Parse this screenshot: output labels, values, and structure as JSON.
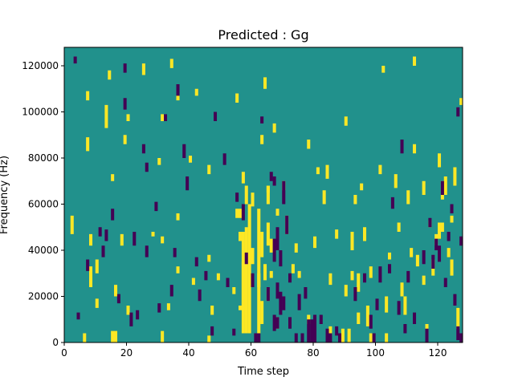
{
  "chart_data": {
    "type": "heatmap",
    "title": "Predicted : Gg",
    "xlabel": "Time step",
    "ylabel": "Frequency (Hz)",
    "xlim": [
      0,
      128
    ],
    "ylim": [
      0,
      128000
    ],
    "x_ticks": [
      0,
      20,
      40,
      60,
      80,
      100,
      120
    ],
    "y_ticks": [
      0,
      20000,
      40000,
      60000,
      80000,
      100000,
      120000
    ],
    "x_tick_labels": [
      "0",
      "20",
      "40",
      "60",
      "80",
      "100",
      "120"
    ],
    "y_tick_labels": [
      "0",
      "20000",
      "40000",
      "60000",
      "80000",
      "100000",
      "120000"
    ],
    "n_time_steps": 128,
    "n_frequency_bins": 128,
    "bin_height_hz": 1000,
    "levels": {
      "background": {
        "value": 0,
        "color": "#21918c"
      },
      "positive": {
        "value": 1,
        "color": "#fde725"
      },
      "negative": {
        "value": -1,
        "color": "#440154"
      }
    },
    "positive_cells": [
      [
        2,
        47,
        55
      ],
      [
        6,
        0,
        4
      ],
      [
        7,
        83,
        89
      ],
      [
        7,
        105,
        109
      ],
      [
        8,
        24,
        33
      ],
      [
        8,
        42,
        47
      ],
      [
        10,
        15,
        19
      ],
      [
        10,
        30,
        36
      ],
      [
        13,
        93,
        103
      ],
      [
        14,
        114,
        118
      ],
      [
        15,
        0,
        5
      ],
      [
        15,
        70,
        73
      ],
      [
        16,
        0,
        5
      ],
      [
        16,
        20,
        25
      ],
      [
        18,
        42,
        47
      ],
      [
        19,
        86,
        90
      ],
      [
        20,
        12,
        16
      ],
      [
        20,
        96,
        99
      ],
      [
        25,
        116,
        121
      ],
      [
        28,
        46,
        48
      ],
      [
        30,
        77,
        80
      ],
      [
        31,
        0,
        5
      ],
      [
        31,
        96,
        99
      ],
      [
        31,
        43,
        46
      ],
      [
        33,
        14,
        17
      ],
      [
        34,
        119,
        123
      ],
      [
        36,
        53,
        56
      ],
      [
        36,
        105,
        108
      ],
      [
        36,
        30,
        33
      ],
      [
        40,
        78,
        81
      ],
      [
        41,
        25,
        28
      ],
      [
        42,
        107,
        110
      ],
      [
        46,
        0,
        3
      ],
      [
        46,
        73,
        77
      ],
      [
        46,
        35,
        38
      ],
      [
        47,
        12,
        16
      ],
      [
        49,
        27,
        30
      ],
      [
        54,
        21,
        24
      ],
      [
        55,
        104,
        108
      ],
      [
        55,
        54,
        58
      ],
      [
        56,
        54,
        58
      ],
      [
        56,
        44,
        48
      ],
      [
        56,
        14,
        16
      ],
      [
        57,
        69,
        74
      ],
      [
        57,
        4,
        35
      ],
      [
        57,
        14,
        48
      ],
      [
        58,
        4,
        50
      ],
      [
        58,
        60,
        68
      ],
      [
        59,
        4,
        60
      ],
      [
        60,
        34,
        41
      ],
      [
        60,
        59,
        65
      ],
      [
        62,
        4,
        58
      ],
      [
        62,
        24,
        30
      ],
      [
        63,
        8,
        18
      ],
      [
        63,
        37,
        48
      ],
      [
        63,
        86,
        90
      ],
      [
        64,
        27,
        33
      ],
      [
        64,
        110,
        115
      ],
      [
        64,
        30,
        34
      ],
      [
        65,
        65,
        68
      ],
      [
        65,
        60,
        68
      ],
      [
        65,
        18,
        24
      ],
      [
        65,
        42,
        52
      ],
      [
        66,
        28,
        31
      ],
      [
        66,
        39,
        45
      ],
      [
        67,
        91,
        95
      ],
      [
        68,
        6,
        11
      ],
      [
        68,
        20,
        24
      ],
      [
        68,
        55,
        58
      ],
      [
        70,
        66,
        70
      ],
      [
        71,
        47,
        55
      ],
      [
        73,
        30,
        34
      ],
      [
        74,
        39,
        43
      ],
      [
        75,
        28,
        31
      ],
      [
        78,
        84,
        88
      ],
      [
        78,
        8,
        12
      ],
      [
        80,
        41,
        46
      ],
      [
        81,
        73,
        76
      ],
      [
        83,
        60,
        66
      ],
      [
        84,
        71,
        77
      ],
      [
        85,
        3,
        7
      ],
      [
        85,
        25,
        30
      ],
      [
        87,
        45,
        49
      ],
      [
        88,
        0,
        4
      ],
      [
        89,
        0,
        6
      ],
      [
        90,
        20,
        25
      ],
      [
        90,
        94,
        98
      ],
      [
        91,
        0,
        6
      ],
      [
        92,
        40,
        48
      ],
      [
        92,
        27,
        31
      ],
      [
        93,
        60,
        64
      ],
      [
        94,
        8,
        13
      ],
      [
        94,
        22,
        30
      ],
      [
        95,
        66,
        69
      ],
      [
        96,
        44,
        50
      ],
      [
        97,
        7,
        16
      ],
      [
        98,
        0,
        4
      ],
      [
        98,
        28,
        33
      ],
      [
        101,
        73,
        77
      ],
      [
        102,
        117,
        120
      ],
      [
        103,
        0,
        4
      ],
      [
        103,
        13,
        20
      ],
      [
        104,
        36,
        39
      ],
      [
        106,
        67,
        73
      ],
      [
        107,
        48,
        52
      ],
      [
        108,
        20,
        26
      ],
      [
        109,
        12,
        20
      ],
      [
        110,
        60,
        66
      ],
      [
        111,
        37,
        41
      ],
      [
        112,
        82,
        86
      ],
      [
        112,
        120,
        124
      ],
      [
        113,
        33,
        38
      ],
      [
        115,
        64,
        70
      ],
      [
        115,
        25,
        29
      ],
      [
        116,
        0,
        8
      ],
      [
        117,
        50,
        53
      ],
      [
        118,
        29,
        36
      ],
      [
        119,
        42,
        47
      ],
      [
        120,
        76,
        82
      ],
      [
        120,
        45,
        52
      ],
      [
        121,
        48,
        52
      ],
      [
        121,
        62,
        70
      ],
      [
        122,
        64,
        72
      ],
      [
        123,
        37,
        41
      ],
      [
        124,
        52,
        55
      ],
      [
        124,
        29,
        36
      ],
      [
        125,
        68,
        76
      ],
      [
        126,
        6,
        15
      ],
      [
        127,
        103,
        106
      ]
    ],
    "negative_cells": [
      [
        3,
        121,
        124
      ],
      [
        4,
        10,
        13
      ],
      [
        7,
        31,
        36
      ],
      [
        11,
        46,
        50
      ],
      [
        12,
        37,
        42
      ],
      [
        13,
        44,
        49
      ],
      [
        15,
        53,
        58
      ],
      [
        17,
        17,
        21
      ],
      [
        19,
        101,
        106
      ],
      [
        19,
        117,
        121
      ],
      [
        21,
        7,
        13
      ],
      [
        22,
        42,
        48
      ],
      [
        23,
        10,
        14
      ],
      [
        25,
        82,
        86
      ],
      [
        26,
        37,
        42
      ],
      [
        26,
        74,
        78
      ],
      [
        29,
        57,
        61
      ],
      [
        30,
        13,
        17
      ],
      [
        32,
        96,
        99
      ],
      [
        34,
        20,
        25
      ],
      [
        35,
        37,
        41
      ],
      [
        36,
        107,
        112
      ],
      [
        38,
        80,
        86
      ],
      [
        39,
        66,
        72
      ],
      [
        42,
        33,
        37
      ],
      [
        43,
        18,
        23
      ],
      [
        45,
        27,
        31
      ],
      [
        47,
        3,
        7
      ],
      [
        48,
        96,
        100
      ],
      [
        51,
        77,
        82
      ],
      [
        52,
        24,
        28
      ],
      [
        54,
        3,
        6
      ],
      [
        55,
        61,
        65
      ],
      [
        57,
        53,
        60
      ],
      [
        58,
        34,
        39
      ],
      [
        60,
        24,
        30
      ],
      [
        61,
        0,
        4
      ],
      [
        62,
        0,
        4
      ],
      [
        63,
        95,
        98
      ],
      [
        65,
        18,
        24
      ],
      [
        66,
        70,
        74
      ],
      [
        67,
        35,
        45
      ],
      [
        67,
        5,
        12
      ],
      [
        67,
        68,
        72
      ],
      [
        68,
        6,
        11
      ],
      [
        68,
        19,
        26
      ],
      [
        68,
        40,
        50
      ],
      [
        69,
        12,
        22
      ],
      [
        69,
        33,
        40
      ],
      [
        70,
        14,
        20
      ],
      [
        70,
        60,
        70
      ],
      [
        71,
        47,
        55
      ],
      [
        72,
        6,
        11
      ],
      [
        72,
        26,
        30
      ],
      [
        74,
        0,
        4
      ],
      [
        75,
        14,
        21
      ],
      [
        76,
        0,
        4
      ],
      [
        77,
        19,
        24
      ],
      [
        78,
        0,
        10
      ],
      [
        79,
        0,
        10
      ],
      [
        80,
        0,
        12
      ],
      [
        82,
        8,
        12
      ],
      [
        84,
        0,
        6
      ],
      [
        85,
        0,
        4
      ],
      [
        87,
        3,
        7
      ],
      [
        88,
        0,
        4
      ],
      [
        93,
        18,
        24
      ],
      [
        96,
        26,
        30
      ],
      [
        98,
        6,
        12
      ],
      [
        99,
        0,
        4
      ],
      [
        100,
        14,
        19
      ],
      [
        101,
        26,
        33
      ],
      [
        104,
        30,
        34
      ],
      [
        105,
        58,
        63
      ],
      [
        107,
        12,
        18
      ],
      [
        108,
        82,
        88
      ],
      [
        109,
        4,
        8
      ],
      [
        110,
        26,
        31
      ],
      [
        112,
        8,
        13
      ],
      [
        115,
        34,
        40
      ],
      [
        116,
        0,
        6
      ],
      [
        117,
        50,
        54
      ],
      [
        118,
        32,
        38
      ],
      [
        119,
        40,
        45
      ],
      [
        120,
        35,
        42
      ],
      [
        121,
        64,
        70
      ],
      [
        122,
        24,
        28
      ],
      [
        123,
        44,
        48
      ],
      [
        124,
        56,
        60
      ],
      [
        125,
        16,
        21
      ],
      [
        126,
        1,
        7
      ],
      [
        126,
        98,
        102
      ],
      [
        127,
        0,
        4
      ],
      [
        127,
        42,
        46
      ]
    ]
  }
}
